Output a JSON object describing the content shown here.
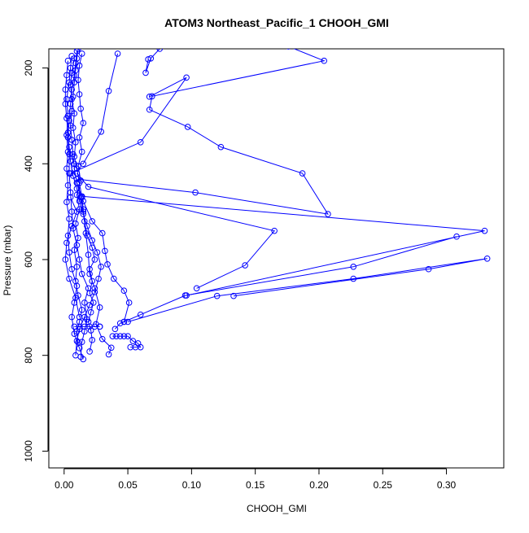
{
  "chart_data": {
    "type": "line",
    "title": "ATOM3 Northeast_Pacific_1 CHOOH_GMI",
    "xlabel": "CHOOH_GMI",
    "ylabel": "Pressure (mbar)",
    "xlim": [
      -0.012,
      0.345
    ],
    "ylim": [
      1035,
      160
    ],
    "y_inverted": true,
    "grid": false,
    "legend": "none",
    "x_ticks": [
      0.0,
      0.05,
      0.1,
      0.15,
      0.2,
      0.25,
      0.3
    ],
    "x_tick_labels": [
      "0.00",
      "0.05",
      "0.10",
      "0.15",
      "0.20",
      "0.25",
      "0.30"
    ],
    "y_ticks": [
      200,
      400,
      600,
      800,
      1000
    ],
    "y_tick_labels": [
      "200",
      "400",
      "600",
      "800",
      "1000"
    ],
    "series_color": "#0000ff",
    "series": [
      {
        "points": [
          [
            0.035,
            798
          ],
          [
            0.037,
            784
          ],
          [
            0.03,
            766
          ],
          [
            0.025,
            735
          ],
          [
            0.028,
            700
          ],
          [
            0.024,
            660
          ],
          [
            0.02,
            630
          ],
          [
            0.019,
            590
          ],
          [
            0.017,
            545
          ],
          [
            0.015,
            500
          ],
          [
            0.013,
            470
          ],
          [
            0.01,
            440
          ],
          [
            0.008,
            410
          ],
          [
            0.007,
            380
          ],
          [
            0.006,
            350
          ],
          [
            0.005,
            320
          ],
          [
            0.006,
            290
          ],
          [
            0.007,
            260
          ],
          [
            0.008,
            230
          ],
          [
            0.009,
            205
          ],
          [
            0.01,
            180
          ],
          [
            0.011,
            160
          ]
        ]
      },
      {
        "points": [
          [
            0.013,
            803
          ],
          [
            0.014,
            772
          ],
          [
            0.016,
            750
          ],
          [
            0.018,
            725
          ],
          [
            0.016,
            690
          ],
          [
            0.019,
            660
          ],
          [
            0.014,
            630
          ],
          [
            0.012,
            600
          ],
          [
            0.01,
            570
          ],
          [
            0.007,
            535
          ],
          [
            0.006,
            500
          ],
          [
            0.005,
            460
          ],
          [
            0.004,
            420
          ],
          [
            0.004,
            380
          ],
          [
            0.003,
            345
          ],
          [
            0.004,
            310
          ],
          [
            0.005,
            275
          ],
          [
            0.006,
            245
          ],
          [
            0.008,
            215
          ],
          [
            0.009,
            190
          ],
          [
            0.01,
            165
          ]
        ]
      },
      {
        "points": [
          [
            0.015,
            808
          ],
          [
            0.012,
            785
          ],
          [
            0.008,
            755
          ],
          [
            0.006,
            720
          ],
          [
            0.008,
            690
          ],
          [
            0.01,
            655
          ],
          [
            0.006,
            620
          ],
          [
            0.004,
            585
          ],
          [
            0.003,
            550
          ],
          [
            0.004,
            515
          ],
          [
            0.002,
            480
          ],
          [
            0.003,
            445
          ],
          [
            0.002,
            410
          ],
          [
            0.003,
            375
          ],
          [
            0.002,
            340
          ],
          [
            0.003,
            300
          ],
          [
            0.002,
            265
          ],
          [
            0.004,
            230
          ],
          [
            0.005,
            200
          ],
          [
            0.006,
            175
          ]
        ]
      },
      {
        "points": [
          [
            0.011,
            773
          ],
          [
            0.01,
            750
          ],
          [
            0.012,
            730
          ],
          [
            0.014,
            705
          ],
          [
            0.011,
            675
          ],
          [
            0.009,
            645
          ],
          [
            0.01,
            615
          ],
          [
            0.008,
            580
          ],
          [
            0.011,
            555
          ],
          [
            0.009,
            525
          ],
          [
            0.012,
            495
          ],
          [
            0.01,
            465
          ],
          [
            0.013,
            435
          ],
          [
            0.011,
            405
          ],
          [
            0.014,
            375
          ],
          [
            0.012,
            345
          ],
          [
            0.015,
            315
          ],
          [
            0.013,
            285
          ],
          [
            0.012,
            255
          ],
          [
            0.011,
            225
          ],
          [
            0.012,
            195
          ],
          [
            0.014,
            170
          ]
        ]
      },
      {
        "points": [
          [
            0.02,
            792
          ],
          [
            0.022,
            768
          ],
          [
            0.021,
            748
          ],
          [
            0.019,
            730
          ],
          [
            0.021,
            710
          ],
          [
            0.023,
            690
          ],
          [
            0.02,
            670
          ],
          [
            0.022,
            645
          ],
          [
            0.02,
            620
          ],
          [
            0.024,
            600
          ],
          [
            0.022,
            575
          ],
          [
            0.018,
            550
          ],
          [
            0.016,
            520
          ],
          [
            0.015,
            495
          ],
          [
            0.014,
            470
          ],
          [
            0.012,
            440
          ],
          [
            0.01,
            410
          ],
          [
            0.008,
            385
          ],
          [
            0.009,
            355
          ],
          [
            0.007,
            325
          ],
          [
            0.008,
            295
          ],
          [
            0.006,
            265
          ],
          [
            0.005,
            235
          ],
          [
            0.006,
            210
          ],
          [
            0.008,
            180
          ]
        ]
      },
      {
        "points": [
          [
            0.009,
            800
          ],
          [
            0.01,
            770
          ],
          [
            0.012,
            745
          ],
          [
            0.016,
            720
          ],
          [
            0.02,
            695
          ],
          [
            0.024,
            668
          ],
          [
            0.027,
            640
          ],
          [
            0.029,
            615
          ],
          [
            0.026,
            585
          ],
          [
            0.022,
            560
          ],
          [
            0.018,
            530
          ],
          [
            0.015,
            505
          ],
          [
            0.012,
            478
          ],
          [
            0.01,
            452
          ],
          [
            0.007,
            425
          ],
          [
            0.005,
            395
          ],
          [
            0.004,
            365
          ],
          [
            0.003,
            335
          ],
          [
            0.002,
            305
          ],
          [
            0.001,
            275
          ],
          [
            0.001,
            245
          ],
          [
            0.002,
            215
          ],
          [
            0.003,
            185
          ]
        ]
      },
      {
        "points": [
          [
            0.008,
            740
          ],
          [
            0.012,
            740
          ],
          [
            0.016,
            740
          ],
          [
            0.02,
            740
          ],
          [
            0.024,
            740
          ],
          [
            0.028,
            740
          ],
          [
            0.028,
            740
          ]
        ]
      },
      {
        "points": [
          [
            0.052,
            783
          ],
          [
            0.056,
            783
          ],
          [
            0.06,
            783
          ],
          [
            0.058,
            775
          ],
          [
            0.054,
            770
          ],
          [
            0.05,
            760
          ],
          [
            0.047,
            760
          ],
          [
            0.044,
            760
          ],
          [
            0.041,
            760
          ],
          [
            0.038,
            760
          ]
        ]
      },
      {
        "points": [
          [
            0.04,
            745
          ],
          [
            0.044,
            733
          ],
          [
            0.047,
            730
          ],
          [
            0.06,
            715
          ],
          [
            0.095,
            675
          ],
          [
            0.227,
            615
          ],
          [
            0.308,
            552
          ]
        ]
      },
      {
        "points": [
          [
            0.05,
            730
          ],
          [
            0.12,
            676
          ],
          [
            0.227,
            640
          ],
          [
            0.332,
            598
          ],
          [
            0.286,
            620
          ],
          [
            0.133,
            676
          ]
        ]
      },
      {
        "points": [
          [
            0.047,
            730
          ],
          [
            0.051,
            690
          ],
          [
            0.047,
            665
          ],
          [
            0.039,
            640
          ],
          [
            0.034,
            610
          ],
          [
            0.032,
            582
          ],
          [
            0.03,
            545
          ],
          [
            0.022,
            520
          ],
          [
            0.015,
            478
          ],
          [
            0.01,
            440
          ]
        ]
      },
      {
        "points": [
          [
            0.01,
            420
          ],
          [
            0.019,
            448
          ],
          [
            0.165,
            540
          ],
          [
            0.142,
            612
          ],
          [
            0.104,
            660
          ]
        ]
      },
      {
        "points": [
          [
            0.01,
            432
          ],
          [
            0.103,
            460
          ],
          [
            0.207,
            505
          ],
          [
            0.187,
            420
          ],
          [
            0.123,
            365
          ],
          [
            0.097,
            323
          ],
          [
            0.067,
            287
          ],
          [
            0.069,
            259
          ],
          [
            0.204,
            185
          ],
          [
            0.176,
            155
          ]
        ]
      },
      {
        "points": [
          [
            0.005,
            420
          ],
          [
            0.06,
            355
          ],
          [
            0.096,
            220
          ],
          [
            0.067,
            260
          ]
        ]
      },
      {
        "points": [
          [
            0.008,
            400
          ],
          [
            0.015,
            400
          ],
          [
            0.029,
            333
          ],
          [
            0.035,
            248
          ],
          [
            0.042,
            170
          ]
        ]
      },
      {
        "points": [
          [
            0.014,
            468
          ],
          [
            0.33,
            540
          ],
          [
            0.096,
            675
          ]
        ]
      },
      {
        "points": [
          [
            0.005,
            470
          ],
          [
            0.01,
            500
          ],
          [
            0.006,
            530
          ],
          [
            0.002,
            565
          ],
          [
            0.001,
            600
          ],
          [
            0.004,
            640
          ],
          [
            0.009,
            680
          ],
          [
            0.012,
            720
          ]
        ]
      },
      {
        "points": [
          [
            0.066,
            182
          ],
          [
            0.064,
            210
          ],
          [
            0.068,
            180
          ],
          [
            0.075,
            160
          ]
        ]
      }
    ]
  }
}
